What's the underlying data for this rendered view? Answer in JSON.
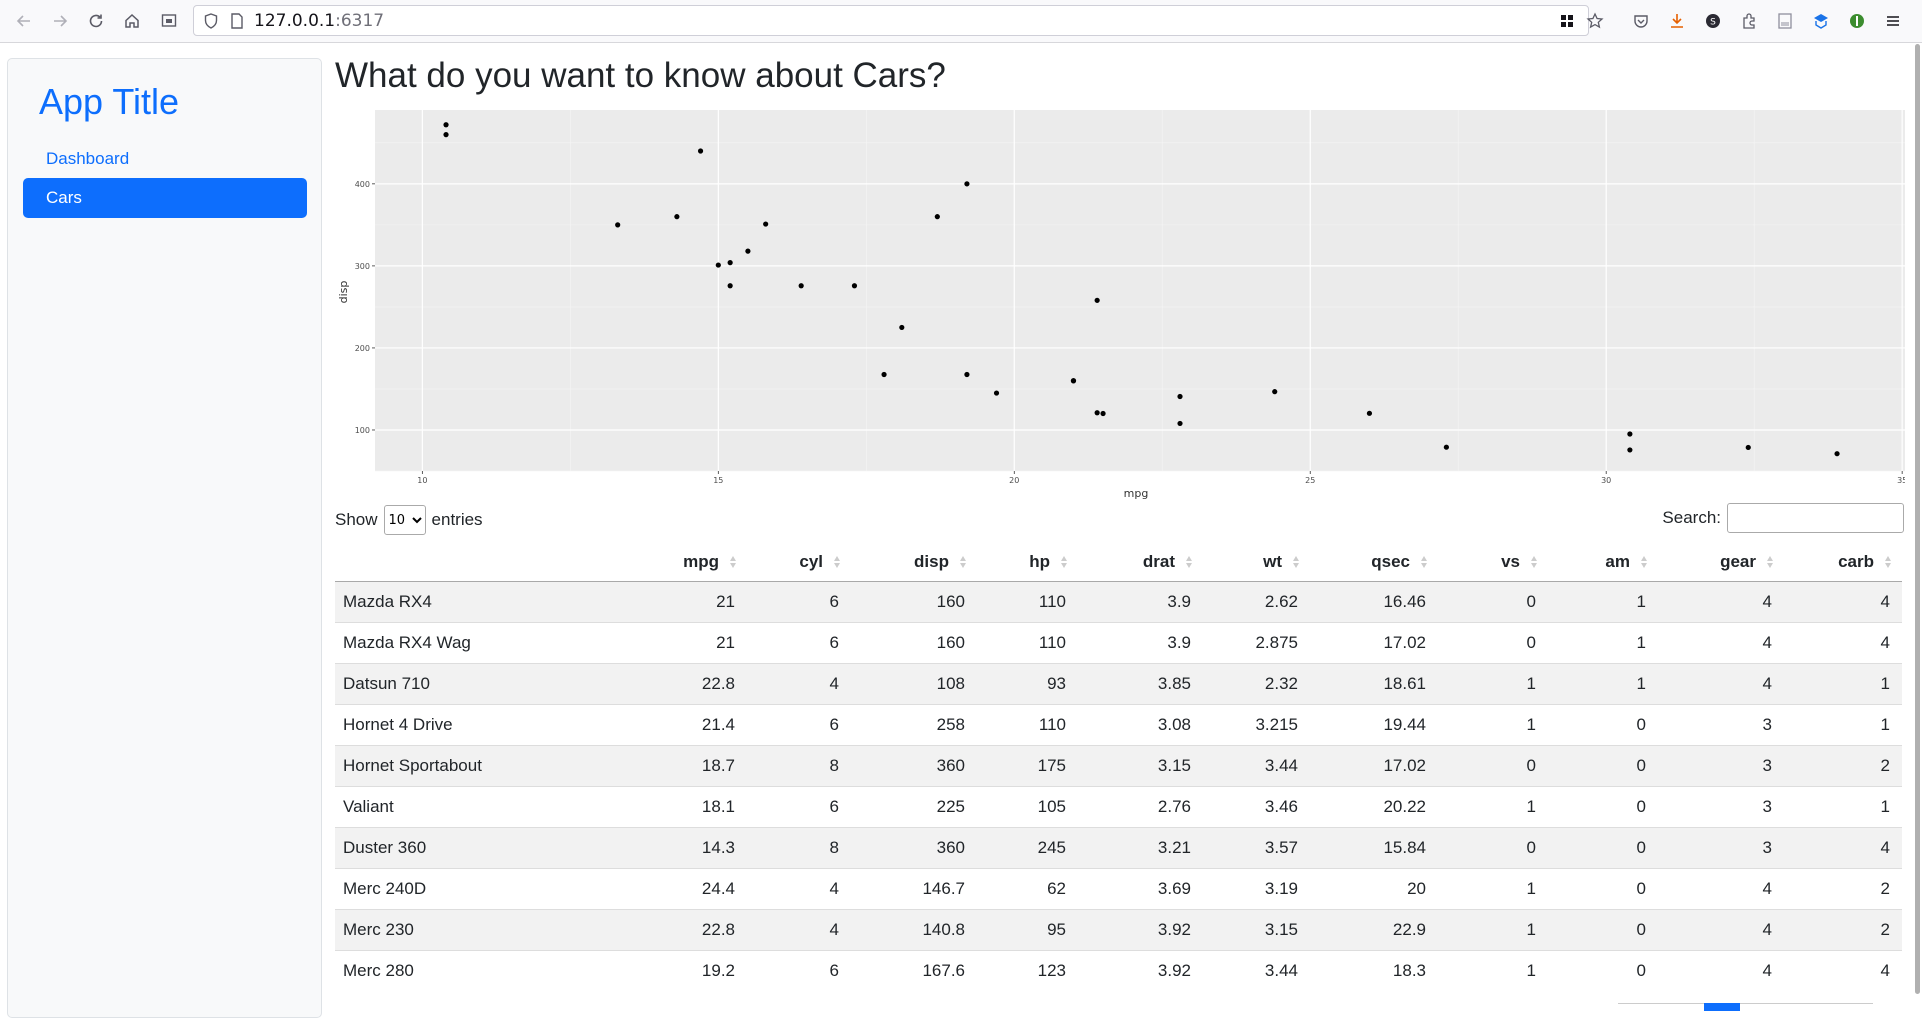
{
  "browser": {
    "url_host": "127.0.0.1",
    "url_port": ":6317"
  },
  "sidebar": {
    "title": "App Title",
    "items": [
      {
        "label": "Dashboard",
        "active": false
      },
      {
        "label": "Cars",
        "active": true
      }
    ]
  },
  "main": {
    "title": "What do you want to know about Cars?"
  },
  "chart_data": {
    "type": "scatter",
    "xlabel": "mpg",
    "ylabel": "disp",
    "xlim": [
      9.2,
      35.2
    ],
    "ylim": [
      50,
      490
    ],
    "xticks": [
      10,
      15,
      20,
      25,
      30,
      35
    ],
    "yticks": [
      100,
      200,
      300,
      400
    ],
    "points": [
      [
        21,
        160
      ],
      [
        21,
        160
      ],
      [
        22.8,
        108
      ],
      [
        21.4,
        258
      ],
      [
        18.7,
        360
      ],
      [
        18.1,
        225
      ],
      [
        14.3,
        360
      ],
      [
        24.4,
        146.7
      ],
      [
        22.8,
        140.8
      ],
      [
        19.2,
        167.6
      ],
      [
        17.8,
        167.6
      ],
      [
        16.4,
        275.8
      ],
      [
        17.3,
        275.8
      ],
      [
        15.2,
        275.8
      ],
      [
        10.4,
        472
      ],
      [
        10.4,
        460
      ],
      [
        14.7,
        440
      ],
      [
        32.4,
        78.7
      ],
      [
        30.4,
        75.7
      ],
      [
        33.9,
        71.1
      ],
      [
        21.5,
        120.1
      ],
      [
        15.5,
        318
      ],
      [
        15.2,
        304
      ],
      [
        13.3,
        350
      ],
      [
        19.2,
        400
      ],
      [
        27.3,
        79
      ],
      [
        26,
        120.3
      ],
      [
        30.4,
        95.1
      ],
      [
        15.8,
        351
      ],
      [
        19.7,
        145
      ],
      [
        15,
        301
      ],
      [
        21.4,
        121
      ]
    ],
    "grid": true,
    "legend": "none"
  },
  "table": {
    "length_prefix": "Show",
    "length_value": "10",
    "length_suffix": "entries",
    "search_label": "Search:",
    "search_value": "",
    "columns": [
      "",
      "mpg",
      "cyl",
      "disp",
      "hp",
      "drat",
      "wt",
      "qsec",
      "vs",
      "am",
      "gear",
      "carb"
    ],
    "rows": [
      [
        "Mazda RX4",
        "21",
        "6",
        "160",
        "110",
        "3.9",
        "2.62",
        "16.46",
        "0",
        "1",
        "4",
        "4"
      ],
      [
        "Mazda RX4 Wag",
        "21",
        "6",
        "160",
        "110",
        "3.9",
        "2.875",
        "17.02",
        "0",
        "1",
        "4",
        "4"
      ],
      [
        "Datsun 710",
        "22.8",
        "4",
        "108",
        "93",
        "3.85",
        "2.32",
        "18.61",
        "1",
        "1",
        "4",
        "1"
      ],
      [
        "Hornet 4 Drive",
        "21.4",
        "6",
        "258",
        "110",
        "3.08",
        "3.215",
        "19.44",
        "1",
        "0",
        "3",
        "1"
      ],
      [
        "Hornet Sportabout",
        "18.7",
        "8",
        "360",
        "175",
        "3.15",
        "3.44",
        "17.02",
        "0",
        "0",
        "3",
        "2"
      ],
      [
        "Valiant",
        "18.1",
        "6",
        "225",
        "105",
        "2.76",
        "3.46",
        "20.22",
        "1",
        "0",
        "3",
        "1"
      ],
      [
        "Duster 360",
        "14.3",
        "8",
        "360",
        "245",
        "3.21",
        "3.57",
        "15.84",
        "0",
        "0",
        "3",
        "4"
      ],
      [
        "Merc 240D",
        "24.4",
        "4",
        "146.7",
        "62",
        "3.69",
        "3.19",
        "20",
        "1",
        "0",
        "4",
        "2"
      ],
      [
        "Merc 230",
        "22.8",
        "4",
        "140.8",
        "95",
        "3.92",
        "3.15",
        "22.9",
        "1",
        "0",
        "4",
        "2"
      ],
      [
        "Merc 280",
        "19.2",
        "6",
        "167.6",
        "123",
        "3.92",
        "3.44",
        "18.3",
        "1",
        "0",
        "4",
        "4"
      ]
    ]
  },
  "colors": {
    "accent": "#0d6efd",
    "plot_panel": "#ebebeb",
    "row_stripe": "#f2f2f2"
  }
}
